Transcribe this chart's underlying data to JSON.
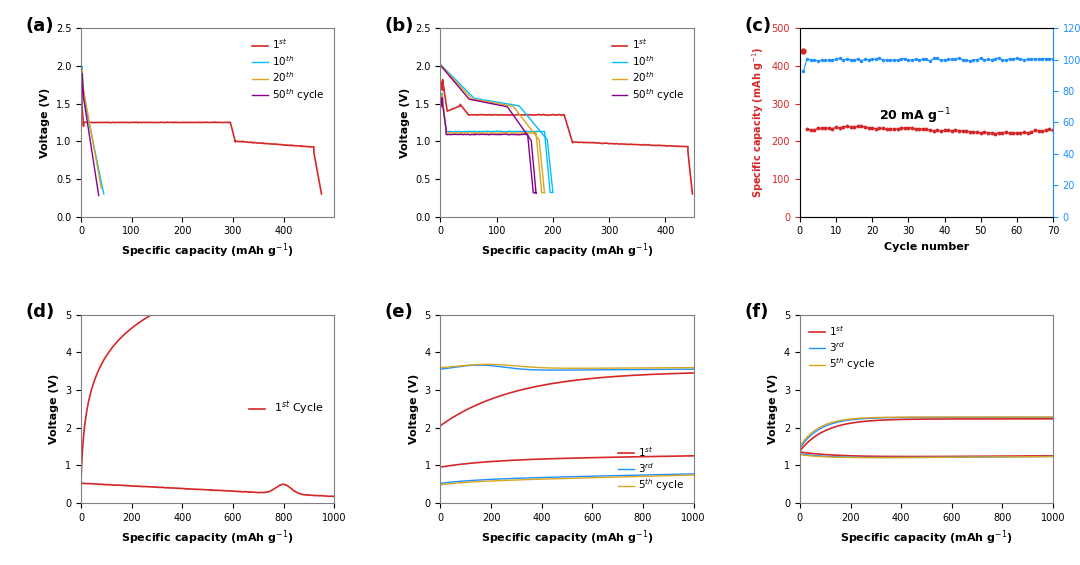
{
  "fig_width": 10.8,
  "fig_height": 5.65,
  "background_color": "#ffffff",
  "panel_labels": [
    "(a)",
    "(b)",
    "(c)",
    "(d)",
    "(e)",
    "(f)"
  ],
  "panel_label_fontsize": 13,
  "colors": {
    "red": "#d62728",
    "cyan": "#00bfff",
    "blue": "#1e90ff",
    "gold": "#daa520",
    "purple": "#8b008b",
    "dark_blue": "#0000cd"
  }
}
